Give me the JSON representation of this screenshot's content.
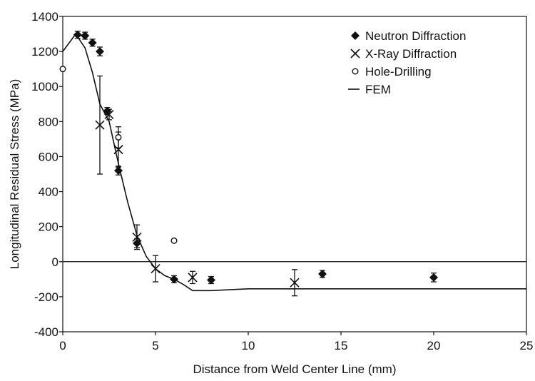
{
  "chart_data": {
    "type": "scatter",
    "title": "",
    "xlabel": "Distance from Weld Center Line (mm)",
    "ylabel": "Longitudinal Residual Stress (MPa)",
    "xlim": [
      0,
      25
    ],
    "ylim": [
      -400,
      1400
    ],
    "x_ticks": [
      "0",
      "5",
      "10",
      "15",
      "20",
      "25"
    ],
    "y_ticks": [
      "-400",
      "-200",
      "0",
      "200",
      "400",
      "600",
      "800",
      "1000",
      "1200",
      "1400"
    ],
    "grid": false,
    "zero_line": true,
    "legend": {
      "placement": "top-right",
      "entries": [
        {
          "marker": "diamond",
          "label": "Neutron Diffraction"
        },
        {
          "marker": "x",
          "label": "X-Ray Diffraction"
        },
        {
          "marker": "circle",
          "label": "Hole-Drilling"
        },
        {
          "marker": "line",
          "label": "FEM"
        }
      ]
    },
    "series": [
      {
        "name": "Neutron Diffraction",
        "marker": "diamond",
        "points": [
          {
            "x": 0.8,
            "y": 1295,
            "err": 20
          },
          {
            "x": 1.2,
            "y": 1290,
            "err": 20
          },
          {
            "x": 1.6,
            "y": 1250,
            "err": 20
          },
          {
            "x": 2.0,
            "y": 1200,
            "err": 25
          },
          {
            "x": 2.4,
            "y": 860,
            "err": 20
          },
          {
            "x": 3.0,
            "y": 520,
            "err": 25
          },
          {
            "x": 4.0,
            "y": 105,
            "err": 25
          },
          {
            "x": 6.0,
            "y": -100,
            "err": 20
          },
          {
            "x": 8.0,
            "y": -105,
            "err": 20
          },
          {
            "x": 14.0,
            "y": -70,
            "err": 20
          },
          {
            "x": 20.0,
            "y": -90,
            "err": 25
          }
        ]
      },
      {
        "name": "X-Ray Diffraction",
        "marker": "x",
        "points": [
          {
            "x": 2.0,
            "y": 780,
            "err": 280
          },
          {
            "x": 2.5,
            "y": 840,
            "err": 30
          },
          {
            "x": 3.0,
            "y": 640,
            "err": 100
          },
          {
            "x": 4.0,
            "y": 140,
            "err": 70
          },
          {
            "x": 5.0,
            "y": -40,
            "err": 75
          },
          {
            "x": 7.0,
            "y": -90,
            "err": 35
          },
          {
            "x": 12.5,
            "y": -120,
            "err": 75
          }
        ]
      },
      {
        "name": "Hole-Drilling",
        "marker": "circle",
        "points": [
          {
            "x": 0.0,
            "y": 1100,
            "err": 0
          },
          {
            "x": 3.0,
            "y": 710,
            "err": 60
          },
          {
            "x": 6.0,
            "y": 120,
            "err": 0
          }
        ]
      },
      {
        "name": "FEM",
        "marker": "line",
        "points": [
          {
            "x": 0.0,
            "y": 1200
          },
          {
            "x": 0.7,
            "y": 1300
          },
          {
            "x": 1.2,
            "y": 1220
          },
          {
            "x": 1.6,
            "y": 1080
          },
          {
            "x": 2.0,
            "y": 900
          },
          {
            "x": 2.5,
            "y": 800
          },
          {
            "x": 3.0,
            "y": 560
          },
          {
            "x": 3.5,
            "y": 340
          },
          {
            "x": 4.0,
            "y": 150
          },
          {
            "x": 4.5,
            "y": 30
          },
          {
            "x": 5.0,
            "y": -40
          },
          {
            "x": 5.5,
            "y": -80
          },
          {
            "x": 6.0,
            "y": -100
          },
          {
            "x": 6.5,
            "y": -130
          },
          {
            "x": 7.0,
            "y": -165
          },
          {
            "x": 8.0,
            "y": -165
          },
          {
            "x": 10.0,
            "y": -155
          },
          {
            "x": 15.0,
            "y": -155
          },
          {
            "x": 20.0,
            "y": -155
          },
          {
            "x": 25.0,
            "y": -155
          }
        ]
      }
    ]
  }
}
